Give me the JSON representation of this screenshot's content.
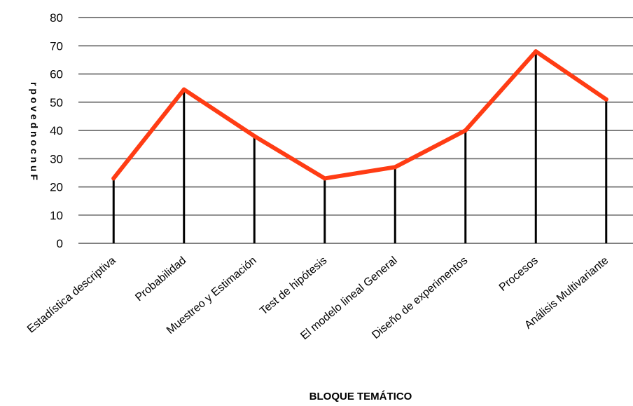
{
  "chart_data": {
    "type": "line",
    "title": "",
    "xlabel": "BLOQUE TEMÁTICO",
    "ylabel": "r p o v e d n o c n u F",
    "ylim": [
      0,
      80
    ],
    "yticks": [
      0,
      10,
      20,
      30,
      40,
      50,
      60,
      70,
      80
    ],
    "grid": true,
    "drop_lines": true,
    "categories": [
      "Estadística descriptiva",
      "Probabilidad",
      "Muestreo y Estimación",
      "Test de hipótesis",
      "El modelo lineal General",
      "Diseño de experimentos",
      "Procesos",
      "Análisis Multivariante"
    ],
    "values": [
      23,
      54.5,
      38,
      23,
      27,
      40,
      68,
      51
    ],
    "colors": {
      "line": "#ff3c14",
      "grid": "#808080",
      "drop_line": "#000000"
    }
  }
}
